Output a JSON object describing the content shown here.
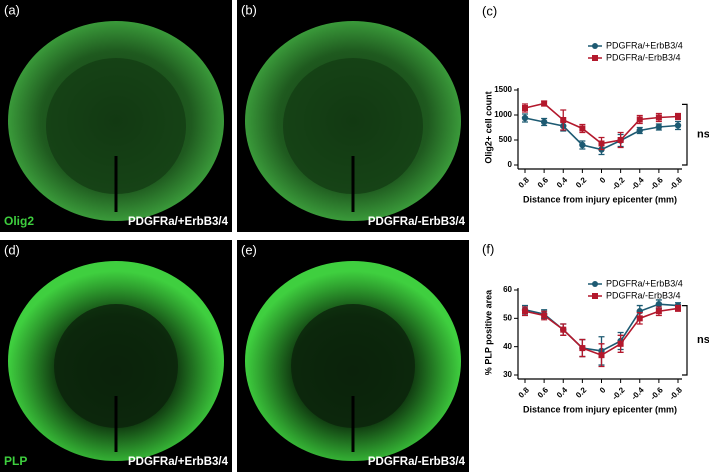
{
  "panels": [
    {
      "label": "(a)",
      "stain": "Olig2",
      "genotype": "PDGFRa/+ErbB3/4"
    },
    {
      "label": "(b)",
      "genotype": "PDGFRa/-ErbB3/4"
    },
    {
      "label": "(d)",
      "stain": "PLP",
      "genotype": "PDGFRa/+ErbB3/4"
    },
    {
      "label": "(e)",
      "genotype": "PDGFRa/-ErbB3/4"
    }
  ],
  "chart_data": [
    {
      "type": "line",
      "panel_label": "(c)",
      "y_label": "Olig2+ cell count",
      "x_label": "Distance from injury epicenter (mm)",
      "categories": [
        "0.8",
        "0.6",
        "0.4",
        "0.2",
        "0",
        "-0.2",
        "-0.4",
        "-0.6",
        "-0.8"
      ],
      "series": [
        {
          "name": "PDGFRa/+ErbB3/4",
          "color": "#1d5a72",
          "marker": "circle",
          "values": [
            940,
            860,
            780,
            400,
            310,
            490,
            690,
            760,
            790
          ],
          "errors": [
            80,
            70,
            100,
            80,
            100,
            120,
            60,
            60,
            80
          ]
        },
        {
          "name": "PDGFRa/-ErbB3/4",
          "color": "#b3182c",
          "marker": "square",
          "values": [
            1140,
            1230,
            900,
            730,
            430,
            500,
            910,
            950,
            970
          ],
          "errors": [
            80,
            50,
            200,
            80,
            120,
            150,
            80,
            80,
            60
          ]
        }
      ],
      "ylim": [
        0,
        1500
      ],
      "yticks": [
        0,
        500,
        1000,
        1500
      ],
      "legend": "upper right",
      "annotation": "ns"
    },
    {
      "type": "line",
      "panel_label": "(f)",
      "y_label": "% PLP positive area",
      "x_label": "Distance from injury epicenter (mm)",
      "categories": [
        "0.8",
        "0.6",
        "0.4",
        "0.2",
        "0",
        "-0.2",
        "-0.4",
        "-0.6",
        "-0.8"
      ],
      "series": [
        {
          "name": "PDGFRa/+ErbB3/4",
          "color": "#1d5a72",
          "marker": "circle",
          "values": [
            53,
            51.5,
            46,
            39.5,
            38.5,
            42,
            52.5,
            55,
            54.5
          ],
          "errors": [
            1.5,
            1.5,
            2,
            3,
            5,
            3,
            2,
            1.5,
            1
          ]
        },
        {
          "name": "PDGFRa/-ErbB3/4",
          "color": "#b3182c",
          "marker": "square",
          "values": [
            52.5,
            51,
            46,
            39.5,
            37,
            41,
            50,
            52.5,
            53.5
          ],
          "errors": [
            1.5,
            1.5,
            2,
            3,
            4,
            3,
            2,
            1.5,
            1
          ]
        }
      ],
      "ylim": [
        30,
        60
      ],
      "yticks": [
        30,
        40,
        50,
        60
      ],
      "legend": "upper right",
      "annotation": "ns"
    }
  ]
}
